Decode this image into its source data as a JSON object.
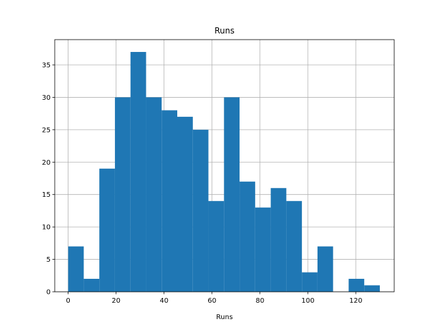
{
  "chart_data": {
    "type": "bar",
    "title": "Runs",
    "xlabel": "Runs",
    "ylabel": "",
    "xlim": [
      -5.6,
      136.0
    ],
    "ylim": [
      0,
      38.9
    ],
    "bin_edges": [
      0,
      6.5,
      13,
      19.5,
      26,
      32.5,
      39,
      45.5,
      52,
      58.5,
      65,
      71.5,
      78,
      84.5,
      91,
      97.5,
      104,
      110.5,
      117,
      123.5,
      130
    ],
    "values": [
      7,
      2,
      19,
      30,
      37,
      30,
      28,
      27,
      25,
      14,
      30,
      17,
      13,
      16,
      14,
      3,
      7,
      0,
      2,
      1
    ],
    "xticks": [
      0,
      20,
      40,
      60,
      80,
      100,
      120
    ],
    "yticks": [
      0,
      5,
      10,
      15,
      20,
      25,
      30,
      35
    ],
    "grid": true,
    "bar_color": "#1f77b4"
  }
}
